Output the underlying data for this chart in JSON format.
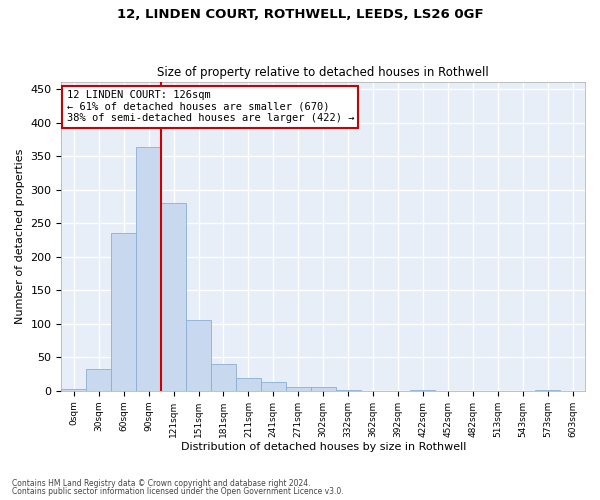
{
  "title1": "12, LINDEN COURT, ROTHWELL, LEEDS, LS26 0GF",
  "title2": "Size of property relative to detached houses in Rothwell",
  "xlabel": "Distribution of detached houses by size in Rothwell",
  "ylabel": "Number of detached properties",
  "bar_color": "#c8d8ee",
  "bar_edge_color": "#8aafd4",
  "bin_labels": [
    "0sqm",
    "30sqm",
    "60sqm",
    "90sqm",
    "121sqm",
    "151sqm",
    "181sqm",
    "211sqm",
    "241sqm",
    "271sqm",
    "302sqm",
    "332sqm",
    "362sqm",
    "392sqm",
    "422sqm",
    "452sqm",
    "482sqm",
    "513sqm",
    "543sqm",
    "573sqm",
    "603sqm"
  ],
  "bar_heights": [
    3,
    32,
    235,
    363,
    280,
    105,
    40,
    19,
    13,
    6,
    5,
    1,
    0,
    0,
    1,
    0,
    0,
    0,
    0,
    1,
    0
  ],
  "n_bins": 21,
  "property_bin": 4,
  "vline_color": "#cc0000",
  "annotation_line1": "12 LINDEN COURT: 126sqm",
  "annotation_line2": "← 61% of detached houses are smaller (670)",
  "annotation_line3": "38% of semi-detached houses are larger (422) →",
  "annotation_box_facecolor": "#ffffff",
  "annotation_box_edgecolor": "#cc0000",
  "ylim": [
    0,
    460
  ],
  "yticks": [
    0,
    50,
    100,
    150,
    200,
    250,
    300,
    350,
    400,
    450
  ],
  "axes_bg_color": "#e8eef8",
  "fig_bg_color": "#ffffff",
  "grid_color": "#ffffff",
  "footer1": "Contains HM Land Registry data © Crown copyright and database right 2024.",
  "footer2": "Contains public sector information licensed under the Open Government Licence v3.0."
}
